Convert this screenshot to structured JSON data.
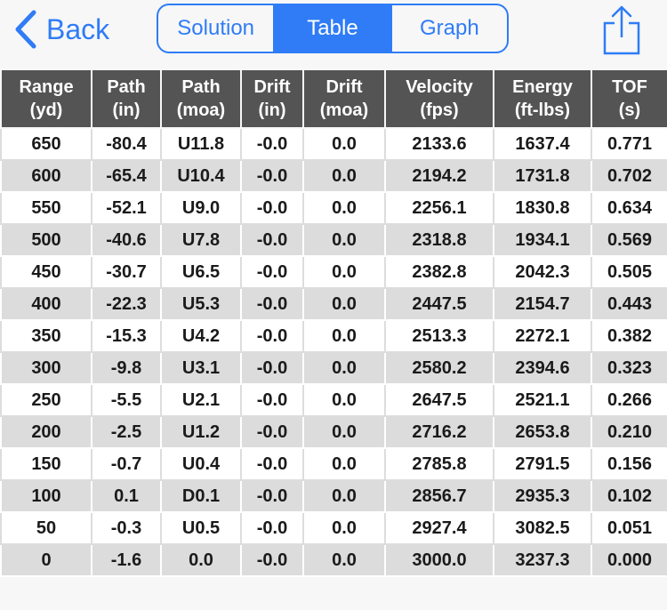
{
  "nav": {
    "back_label": "Back",
    "tabs": [
      {
        "label": "Solution",
        "active": false
      },
      {
        "label": "Table",
        "active": true
      },
      {
        "label": "Graph",
        "active": false
      }
    ],
    "share_icon": "share-icon"
  },
  "colors": {
    "accent": "#2f7cf6",
    "header_bg": "#545454",
    "row_alt_bg": "#dcdcdc"
  },
  "table": {
    "headers": [
      [
        "Range",
        "(yd)"
      ],
      [
        "Path",
        "(in)"
      ],
      [
        "Path",
        "(moa)"
      ],
      [
        "Drift",
        "(in)"
      ],
      [
        "Drift",
        "(moa)"
      ],
      [
        "Velocity",
        "(fps)"
      ],
      [
        "Energy",
        "(ft-lbs)"
      ],
      [
        "TOF",
        "(s)"
      ]
    ],
    "rows": [
      [
        "650",
        "-80.4",
        "U11.8",
        "-0.0",
        "0.0",
        "2133.6",
        "1637.4",
        "0.771"
      ],
      [
        "600",
        "-65.4",
        "U10.4",
        "-0.0",
        "0.0",
        "2194.2",
        "1731.8",
        "0.702"
      ],
      [
        "550",
        "-52.1",
        "U9.0",
        "-0.0",
        "0.0",
        "2256.1",
        "1830.8",
        "0.634"
      ],
      [
        "500",
        "-40.6",
        "U7.8",
        "-0.0",
        "0.0",
        "2318.8",
        "1934.1",
        "0.569"
      ],
      [
        "450",
        "-30.7",
        "U6.5",
        "-0.0",
        "0.0",
        "2382.8",
        "2042.3",
        "0.505"
      ],
      [
        "400",
        "-22.3",
        "U5.3",
        "-0.0",
        "0.0",
        "2447.5",
        "2154.7",
        "0.443"
      ],
      [
        "350",
        "-15.3",
        "U4.2",
        "-0.0",
        "0.0",
        "2513.3",
        "2272.1",
        "0.382"
      ],
      [
        "300",
        "-9.8",
        "U3.1",
        "-0.0",
        "0.0",
        "2580.2",
        "2394.6",
        "0.323"
      ],
      [
        "250",
        "-5.5",
        "U2.1",
        "-0.0",
        "0.0",
        "2647.5",
        "2521.1",
        "0.266"
      ],
      [
        "200",
        "-2.5",
        "U1.2",
        "-0.0",
        "0.0",
        "2716.2",
        "2653.8",
        "0.210"
      ],
      [
        "150",
        "-0.7",
        "U0.4",
        "-0.0",
        "0.0",
        "2785.8",
        "2791.5",
        "0.156"
      ],
      [
        "100",
        "0.1",
        "D0.1",
        "-0.0",
        "0.0",
        "2856.7",
        "2935.3",
        "0.102"
      ],
      [
        "50",
        "-0.3",
        "U0.5",
        "-0.0",
        "0.0",
        "2927.4",
        "3082.5",
        "0.051"
      ],
      [
        "0",
        "-1.6",
        "0.0",
        "-0.0",
        "0.0",
        "3000.0",
        "3237.3",
        "0.000"
      ]
    ]
  }
}
